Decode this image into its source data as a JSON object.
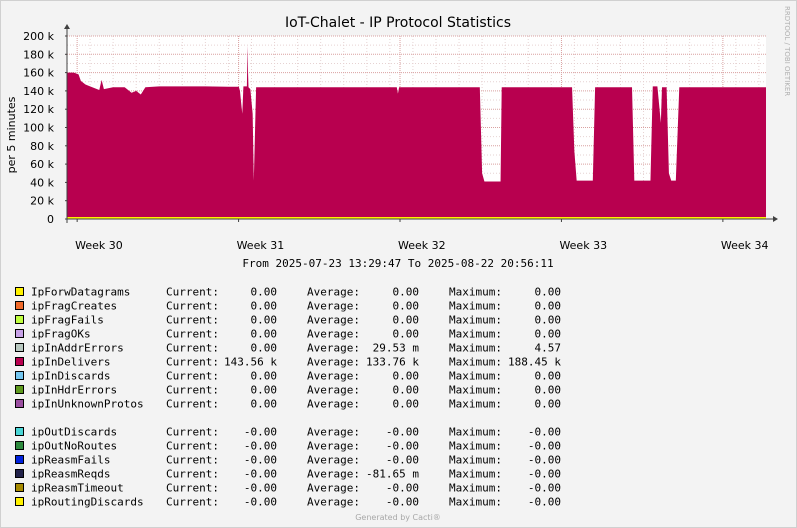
{
  "chart_data": {
    "type": "area",
    "title": "IoT-Chalet - IP Protocol Statistics",
    "ylabel": "per 5 minutes",
    "ylim": [
      0,
      200000
    ],
    "yticks": [
      {
        "value": 0,
        "label": "0"
      },
      {
        "value": 20000,
        "label": "20 k"
      },
      {
        "value": 40000,
        "label": "40 k"
      },
      {
        "value": 60000,
        "label": "60 k"
      },
      {
        "value": 80000,
        "label": "80 k"
      },
      {
        "value": 100000,
        "label": "100 k"
      },
      {
        "value": 120000,
        "label": "120 k"
      },
      {
        "value": 140000,
        "label": "140 k"
      },
      {
        "value": 160000,
        "label": "160 k"
      },
      {
        "value": 180000,
        "label": "180 k"
      },
      {
        "value": 200000,
        "label": "200 k"
      }
    ],
    "xlim": [
      0,
      30.31
    ],
    "xticks": [
      {
        "value": 0.44,
        "label": "Week 30"
      },
      {
        "value": 7.44,
        "label": "Week 31"
      },
      {
        "value": 14.44,
        "label": "Week 32"
      },
      {
        "value": 21.44,
        "label": "Week 33"
      },
      {
        "value": 28.44,
        "label": "Week 34"
      }
    ],
    "time_range": "From 2025-07-23 13:29:47 To 2025-08-22 20:56:11",
    "grid": true,
    "series": [
      {
        "name": "ipInDelivers",
        "color": "#B8004F",
        "points": [
          [
            0.0,
            160000
          ],
          [
            0.3,
            160000
          ],
          [
            0.5,
            158000
          ],
          [
            0.6,
            151000
          ],
          [
            0.8,
            147000
          ],
          [
            1.0,
            145000
          ],
          [
            1.4,
            141000
          ],
          [
            1.5,
            152000
          ],
          [
            1.6,
            142000
          ],
          [
            2.0,
            144000
          ],
          [
            2.5,
            144000
          ],
          [
            2.8,
            138000
          ],
          [
            3.0,
            140000
          ],
          [
            3.2,
            136000
          ],
          [
            3.4,
            144000
          ],
          [
            4.0,
            145000
          ],
          [
            5.0,
            145000
          ],
          [
            6.0,
            145000
          ],
          [
            7.0,
            144500
          ],
          [
            7.45,
            144500
          ],
          [
            7.5,
            140000
          ],
          [
            7.6,
            115000
          ],
          [
            7.65,
            145000
          ],
          [
            7.8,
            145000
          ],
          [
            7.83,
            190000
          ],
          [
            7.85,
            160000
          ],
          [
            7.87,
            144000
          ],
          [
            7.95,
            142000
          ],
          [
            8.05,
            115000
          ],
          [
            8.1,
            42000
          ],
          [
            8.2,
            144000
          ],
          [
            9.0,
            144000
          ],
          [
            10.0,
            144000
          ],
          [
            11.0,
            144000
          ],
          [
            12.0,
            144000
          ],
          [
            13.0,
            144000
          ],
          [
            14.0,
            144000
          ],
          [
            14.3,
            144000
          ],
          [
            14.35,
            137000
          ],
          [
            14.4,
            144000
          ],
          [
            15.0,
            144000
          ],
          [
            16.0,
            144000
          ],
          [
            17.0,
            144000
          ],
          [
            17.9,
            144000
          ],
          [
            18.0,
            50000
          ],
          [
            18.1,
            41000
          ],
          [
            18.8,
            41000
          ],
          [
            18.85,
            144000
          ],
          [
            19.5,
            144000
          ],
          [
            20.0,
            144000
          ],
          [
            21.0,
            144000
          ],
          [
            21.9,
            144000
          ],
          [
            22.0,
            74000
          ],
          [
            22.1,
            42000
          ],
          [
            22.8,
            42000
          ],
          [
            22.9,
            144000
          ],
          [
            23.5,
            144000
          ],
          [
            24.0,
            144000
          ],
          [
            24.5,
            144000
          ],
          [
            24.6,
            42000
          ],
          [
            25.3,
            42000
          ],
          [
            25.4,
            145000
          ],
          [
            25.6,
            145000
          ],
          [
            25.75,
            105000
          ],
          [
            25.8,
            144000
          ],
          [
            26.0,
            144000
          ],
          [
            26.1,
            50000
          ],
          [
            26.2,
            42000
          ],
          [
            26.4,
            42000
          ],
          [
            26.55,
            144000
          ],
          [
            27.0,
            144000
          ],
          [
            28.0,
            144000
          ],
          [
            29.0,
            144000
          ],
          [
            30.31,
            144000
          ]
        ]
      },
      {
        "name": "IpForwDatagrams",
        "color": "#FFF200",
        "points": [
          [
            0,
            0
          ],
          [
            30.31,
            0
          ]
        ]
      }
    ]
  },
  "legend": [
    {
      "name": "IpForwDatagrams",
      "color": "#FFF200",
      "current": "0.00",
      "average": "0.00",
      "maximum": "0.00"
    },
    {
      "name": "ipFragCreates",
      "color": "#F06A2A",
      "current": "0.00",
      "average": "0.00",
      "maximum": "0.00"
    },
    {
      "name": "ipFragFails",
      "color": "#C0FF40",
      "current": "0.00",
      "average": "0.00",
      "maximum": "0.00"
    },
    {
      "name": "ipFragOKs",
      "color": "#C8A2E8",
      "current": "0.00",
      "average": "0.00",
      "maximum": "0.00"
    },
    {
      "name": "ipInAddrErrors",
      "color": "#B8C8C0",
      "current": "0.00",
      "average": "29.53 m",
      "maximum": "4.57"
    },
    {
      "name": "ipInDelivers",
      "color": "#B8004F",
      "current": "143.56 k",
      "average": "133.76 k",
      "maximum": "188.45 k"
    },
    {
      "name": "ipInDiscards",
      "color": "#74C6F0",
      "current": "0.00",
      "average": "0.00",
      "maximum": "0.00"
    },
    {
      "name": "ipInHdrErrors",
      "color": "#5E9A1E",
      "current": "0.00",
      "average": "0.00",
      "maximum": "0.00"
    },
    {
      "name": "ipInUnknownProtos",
      "color": "#9A4EA0",
      "current": "0.00",
      "average": "0.00",
      "maximum": "0.00"
    },
    {
      "name": "ipOutDiscards",
      "color": "#4AD6D6",
      "current": "-0.00",
      "average": "-0.00",
      "maximum": "-0.00"
    },
    {
      "name": "ipOutNoRoutes",
      "color": "#2E8A3E",
      "current": "-0.00",
      "average": "-0.00",
      "maximum": "-0.00"
    },
    {
      "name": "ipReasmFails",
      "color": "#0022DD",
      "current": "-0.00",
      "average": "-0.00",
      "maximum": "-0.00"
    },
    {
      "name": "ipReasmReqds",
      "color": "#22224A",
      "current": "-0.00",
      "average": "-81.65 m",
      "maximum": "-0.00"
    },
    {
      "name": "ipReasmTimeout",
      "color": "#A68A00",
      "current": "-0.00",
      "average": "-0.00",
      "maximum": "-0.00"
    },
    {
      "name": "ipRoutingDiscards",
      "color": "#FFF200",
      "current": "-0.00",
      "average": "-0.00",
      "maximum": "-0.00"
    }
  ],
  "labels": {
    "current": "Current:",
    "average": "Average:",
    "maximum": "Maximum:"
  },
  "side_text": "RRDTOOL / TOBI OETIKER",
  "footer": "Generated by Cacti®"
}
